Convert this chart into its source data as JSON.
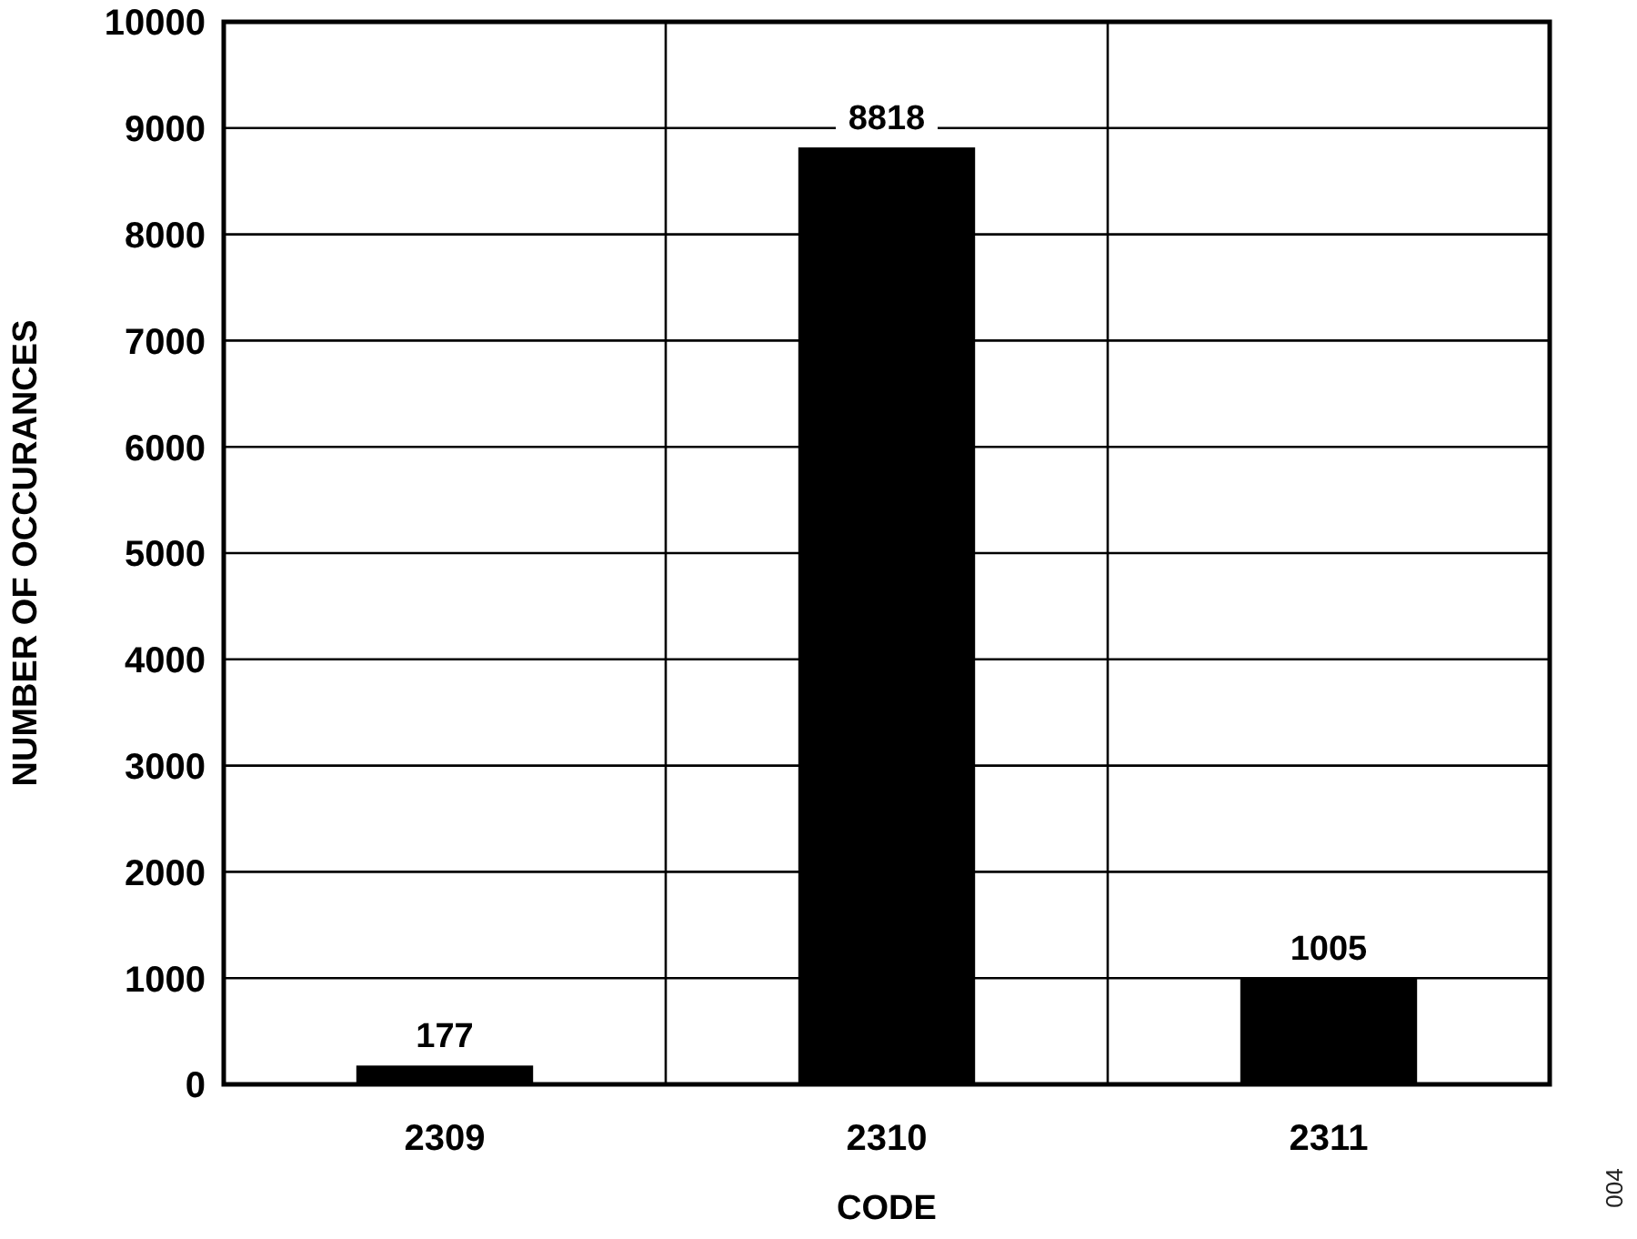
{
  "chart_data": {
    "type": "bar",
    "xlabel": "CODE",
    "ylabel": "NUMBER OF OCCURANCES",
    "categories": [
      "2309",
      "2310",
      "2311"
    ],
    "values": [
      177,
      8818,
      1005
    ],
    "color": "#000000",
    "ylim": [
      0,
      10000
    ],
    "yticks": [
      0,
      1000,
      2000,
      3000,
      4000,
      5000,
      6000,
      7000,
      8000,
      9000,
      10000
    ],
    "grid": true,
    "data_labels": true,
    "annotations": [
      "004"
    ]
  }
}
